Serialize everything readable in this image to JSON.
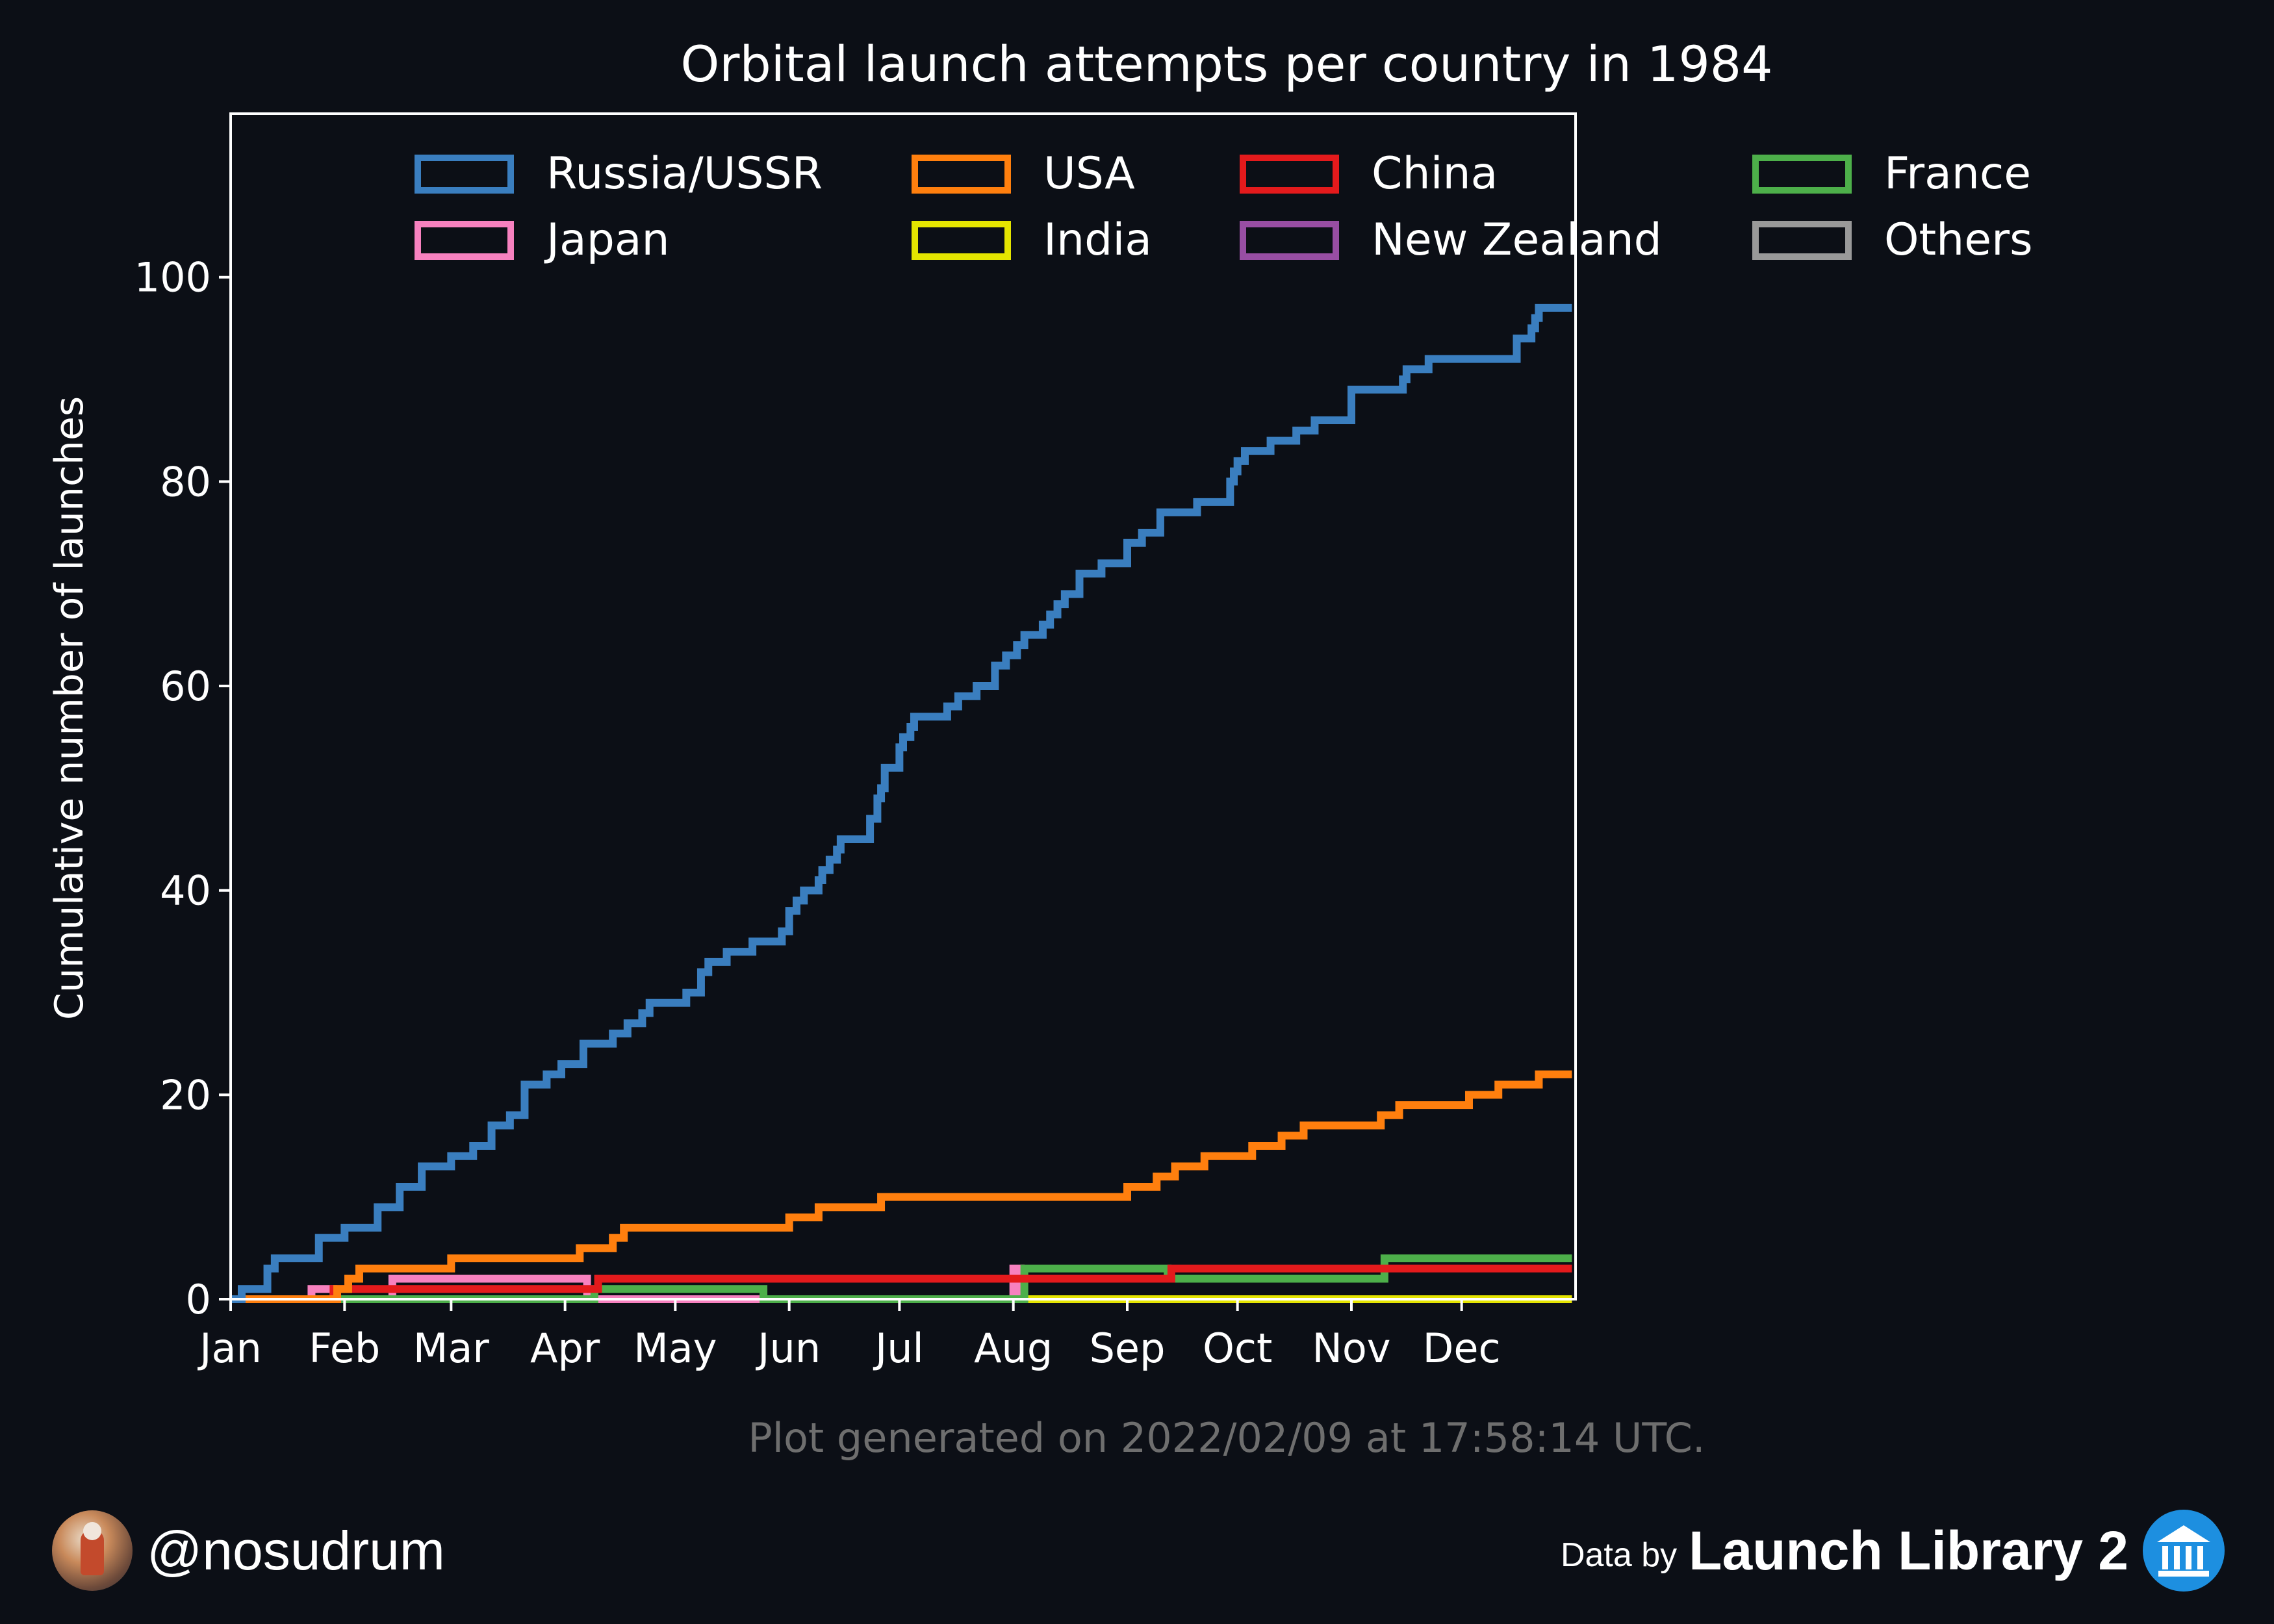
{
  "chart_data": {
    "type": "line",
    "step": true,
    "title": "Orbital launch attempts per country in 1984",
    "xlabel": "",
    "ylabel": "Cumulative number of launches",
    "xlim": [
      0,
      366
    ],
    "ylim": [
      0,
      116
    ],
    "yticks": [
      0,
      20,
      40,
      60,
      80,
      100
    ],
    "xticks": [
      {
        "label": "Jan",
        "day": 0
      },
      {
        "label": "Feb",
        "day": 31
      },
      {
        "label": "Mar",
        "day": 60
      },
      {
        "label": "Apr",
        "day": 91
      },
      {
        "label": "May",
        "day": 121
      },
      {
        "label": "Jun",
        "day": 152
      },
      {
        "label": "Jul",
        "day": 182
      },
      {
        "label": "Aug",
        "day": 213
      },
      {
        "label": "Sep",
        "day": 244
      },
      {
        "label": "Oct",
        "day": 274
      },
      {
        "label": "Nov",
        "day": 305
      },
      {
        "label": "Dec",
        "day": 335
      }
    ],
    "legend_position": "top",
    "series": [
      {
        "name": "Russia/USSR",
        "color": "#3a7ebf",
        "x": [
          0,
          3,
          10,
          12,
          17,
          24,
          31,
          40,
          46,
          52,
          60,
          66,
          71,
          76,
          80,
          86,
          90,
          96,
          104,
          108,
          112,
          114,
          120,
          124,
          128,
          130,
          135,
          142,
          150,
          152,
          154,
          156,
          160,
          161,
          163,
          165,
          166,
          174,
          176,
          177,
          178,
          182,
          183,
          185,
          186,
          195,
          198,
          203,
          208,
          211,
          214,
          216,
          221,
          223,
          225,
          227,
          231,
          237,
          244,
          248,
          253,
          258,
          263,
          272,
          273,
          274,
          276,
          283,
          290,
          295,
          305,
          319,
          320,
          326,
          332,
          335,
          350,
          353,
          354,
          355,
          356,
          365
        ],
        "y": [
          0,
          1,
          3,
          4,
          4,
          6,
          7,
          9,
          11,
          13,
          14,
          15,
          17,
          18,
          21,
          22,
          23,
          25,
          26,
          27,
          28,
          29,
          29,
          30,
          32,
          33,
          34,
          35,
          36,
          38,
          39,
          40,
          41,
          42,
          43,
          44,
          45,
          47,
          49,
          50,
          52,
          54,
          55,
          56,
          57,
          58,
          59,
          60,
          62,
          63,
          64,
          65,
          66,
          67,
          68,
          69,
          71,
          72,
          74,
          75,
          77,
          77,
          78,
          80,
          81,
          82,
          83,
          84,
          85,
          86,
          89,
          90,
          91,
          92,
          92,
          92,
          94,
          94,
          95,
          96,
          97,
          97
        ]
      },
      {
        "name": "USA",
        "color": "#ff7f0e",
        "x": [
          0,
          29,
          32,
          35,
          60,
          95,
          104,
          107,
          152,
          160,
          164,
          177,
          244,
          252,
          257,
          265,
          278,
          286,
          292,
          313,
          318,
          337,
          345,
          356,
          365
        ],
        "y": [
          0,
          1,
          2,
          3,
          4,
          5,
          6,
          7,
          8,
          9,
          9,
          10,
          11,
          12,
          13,
          14,
          15,
          16,
          17,
          18,
          19,
          20,
          21,
          22,
          22
        ]
      },
      {
        "name": "China",
        "color": "#e41a1c",
        "x": [
          0,
          28,
          100,
          256,
          365
        ],
        "y": [
          0,
          1,
          2,
          3,
          3
        ]
      },
      {
        "name": "France",
        "color": "#4daf4a",
        "x": [
          0,
          99,
          145,
          216,
          255,
          314,
          365
        ],
        "y": [
          0,
          1,
          0,
          3,
          2,
          4,
          4
        ]
      },
      {
        "name": "Japan",
        "color": "#f781bf",
        "x": [
          0,
          22,
          28,
          44,
          97,
          213,
          215
        ],
        "y": [
          0,
          1,
          0,
          2,
          0,
          3,
          0
        ]
      },
      {
        "name": "India",
        "color": "#e5e500",
        "x": [
          0,
          365
        ],
        "y": [
          0,
          0
        ]
      },
      {
        "name": "New Zealand",
        "color": "#984ea3",
        "x": [
          0,
          365
        ],
        "y": [
          0,
          0
        ]
      },
      {
        "name": "Others",
        "color": "#999999",
        "x": [
          0,
          365
        ],
        "y": [
          0,
          0
        ]
      }
    ]
  },
  "footer": {
    "generated": "Plot generated on 2022/02/09 at 17:58:14 UTC.",
    "handle": "@nosudrum",
    "data_by": "Data by",
    "source": "Launch Library 2"
  }
}
